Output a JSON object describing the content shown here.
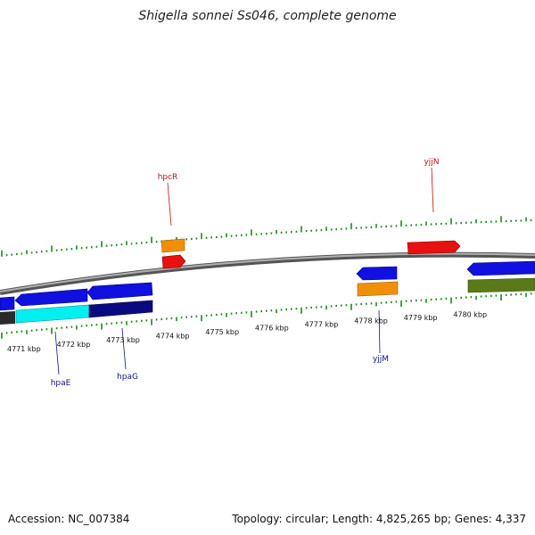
{
  "title": "Shigella sonnei Ss046, complete genome",
  "accession": "Accession: NC_007384",
  "summary": "Topology: circular; Length: 4,825,265 bp; Genes: 4,337",
  "kbp_labels": [
    "4771 kbp",
    "4772 kbp",
    "4773 kbp",
    "4774 kbp",
    "4775 kbp",
    "4776 kbp",
    "4777 kbp",
    "4778 kbp",
    "4779 kbp",
    "4780 kbp"
  ],
  "gene_labels": {
    "hpcR": "hpcR",
    "yjjN": "yjjN",
    "hpaE": "hpaE",
    "hpaG": "hpaG",
    "yjjM": "yjjM"
  },
  "colors": {
    "forward_red": "#e81010",
    "orange": "#f0900a",
    "blue": "#1010e0",
    "cyan": "#00f0f0",
    "navy": "#0a0a80",
    "olive": "#5a7a1a",
    "tick_green": "#1a8a1a",
    "label_red": "#c01010",
    "label_blue": "#10108a",
    "backbone": "#888888"
  }
}
